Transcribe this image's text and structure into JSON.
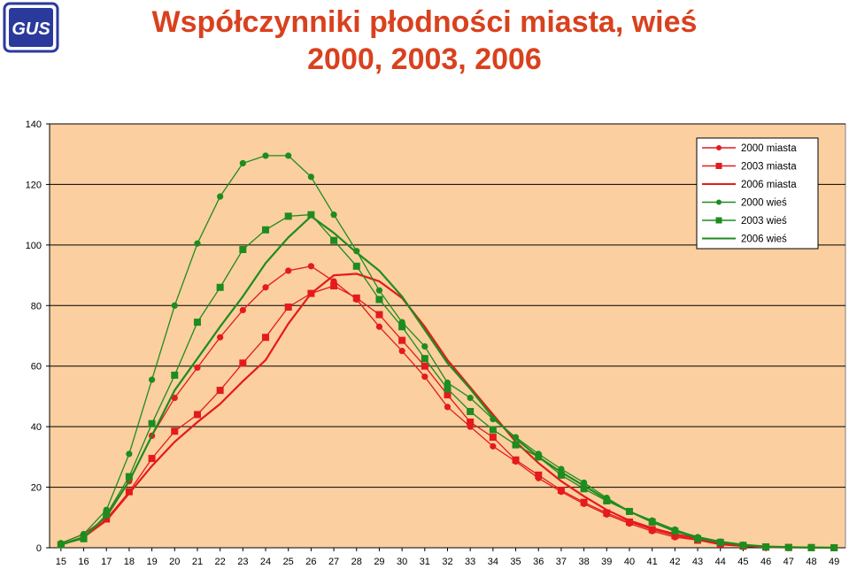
{
  "header": {
    "logo_text": "GUS",
    "title_line1": "Współczynniki płodności miasta, wieś",
    "title_line2": "2000, 2003, 2006"
  },
  "colors": {
    "plot_background": "#fbcf9f",
    "miasta": "#e41a1c",
    "wies": "#1e8c1e",
    "title": "#d9411e",
    "logo": "#2a3a9c"
  },
  "chart_data": {
    "type": "line",
    "title": "",
    "xlabel": "",
    "ylabel": "",
    "ylim": [
      0,
      140
    ],
    "yticks": [
      0,
      20,
      40,
      60,
      80,
      100,
      120,
      140
    ],
    "grid": true,
    "legend_position": "top-right",
    "x": [
      15,
      16,
      17,
      18,
      19,
      20,
      21,
      22,
      23,
      24,
      25,
      26,
      27,
      28,
      29,
      30,
      31,
      32,
      33,
      34,
      35,
      36,
      37,
      38,
      39,
      40,
      41,
      42,
      43,
      44,
      45,
      46,
      47,
      48,
      49
    ],
    "series": [
      {
        "name": "2000 miasta",
        "color": "#e41a1c",
        "marker": "circle",
        "values": [
          1.5,
          4.5,
          10,
          22,
          37,
          49.5,
          59.5,
          69.5,
          78.5,
          86,
          91.5,
          93,
          88,
          82,
          73,
          65,
          56.5,
          46.5,
          40,
          33.5,
          28.5,
          23,
          18.5,
          14.5,
          11,
          8,
          5.5,
          3.5,
          2.5,
          1,
          0.5,
          0.2,
          0.1,
          0.05,
          0
        ]
      },
      {
        "name": "2003 miasta",
        "color": "#e41a1c",
        "marker": "square",
        "values": [
          1,
          3.5,
          9.5,
          18.5,
          29.5,
          38.5,
          44,
          52,
          61,
          69.5,
          79.5,
          84,
          86.5,
          82.5,
          77,
          68.5,
          60,
          50.5,
          41.5,
          36.5,
          29,
          24,
          19,
          15,
          11.5,
          8.5,
          6,
          4,
          2.5,
          1.2,
          0.5,
          0.2,
          0.1,
          0.05,
          0
        ]
      },
      {
        "name": "2006 miasta",
        "color": "#e41a1c",
        "marker": "none",
        "values": [
          1,
          3.5,
          9,
          18,
          27,
          35,
          41.5,
          47.5,
          55,
          62,
          74,
          84,
          90,
          90.5,
          88,
          82.5,
          73,
          62,
          53,
          44,
          35,
          28,
          22,
          17,
          12.5,
          9,
          6.5,
          4.5,
          3,
          1.5,
          0.6,
          0.2,
          0.1,
          0.05,
          0
        ]
      },
      {
        "name": "2000 wieś",
        "color": "#1e8c1e",
        "marker": "circle",
        "values": [
          1.5,
          4.5,
          12.5,
          31,
          55.5,
          80,
          100.5,
          116,
          127,
          129.5,
          129.5,
          122.5,
          110,
          98,
          85,
          74.5,
          66.5,
          54.5,
          49.5,
          42.5,
          36.5,
          31,
          26,
          21.5,
          16.5,
          12,
          9,
          6,
          3.5,
          2,
          1,
          0.4,
          0.2,
          0.1,
          0
        ]
      },
      {
        "name": "2003 wieś",
        "color": "#1e8c1e",
        "marker": "square",
        "values": [
          1,
          3,
          11,
          23.5,
          41,
          57,
          74.5,
          86,
          98.5,
          105,
          109.5,
          110,
          101.5,
          93,
          82,
          73,
          62.5,
          52.5,
          45,
          39,
          34,
          30,
          24,
          19.5,
          15.5,
          12,
          8.5,
          5.5,
          3,
          1.8,
          0.8,
          0.3,
          0.1,
          0.05,
          0
        ]
      },
      {
        "name": "2006 wieś",
        "color": "#1e8c1e",
        "marker": "none",
        "values": [
          1,
          3.5,
          10.5,
          22,
          37,
          52,
          62.5,
          73,
          83,
          94,
          102.5,
          109.5,
          104,
          97.5,
          91.5,
          83,
          72,
          61,
          52.5,
          43,
          36,
          30,
          25,
          20.5,
          16,
          12,
          8.5,
          5.5,
          3.5,
          2,
          1,
          0.4,
          0.2,
          0.1,
          0
        ]
      }
    ]
  }
}
